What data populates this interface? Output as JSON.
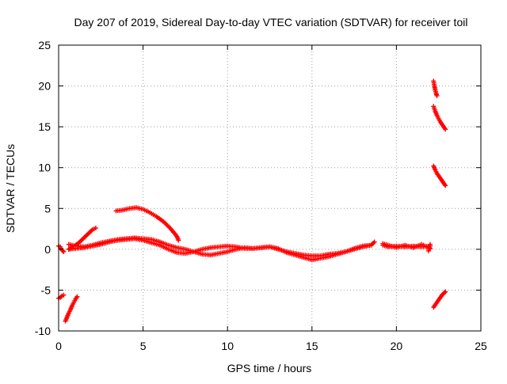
{
  "chart_data": {
    "type": "scatter",
    "title": "Day 207 of 2019, Sidereal Day-to-day VTEC variation (SDTVAR) for receiver toil",
    "xlabel": "GPS time / hours",
    "ylabel": "SDTVAR / TECUs",
    "xlim": [
      0,
      25
    ],
    "ylim": [
      -10,
      25
    ],
    "x_ticks": [
      0,
      5,
      10,
      15,
      20,
      25
    ],
    "y_ticks": [
      -10,
      -5,
      0,
      5,
      10,
      15,
      20,
      25
    ],
    "x_tick_labels": [
      "0",
      "5",
      "10",
      "15",
      "20",
      "25"
    ],
    "y_tick_labels": [
      "-10",
      "-5",
      "0",
      "5",
      "10",
      "15",
      "20",
      "25"
    ],
    "grid": true,
    "legend": "none",
    "marker": "plus",
    "color": "#ff0000",
    "series": [
      {
        "x": [
          0.0,
          0.1,
          0.2,
          0.3
        ],
        "y": [
          -6.0,
          -5.9,
          -5.7,
          -5.6
        ]
      },
      {
        "x": [
          0.0,
          0.1,
          0.2,
          0.3
        ],
        "y": [
          0.4,
          0.3,
          -0.1,
          -0.3
        ]
      },
      {
        "x": [
          0.4,
          0.5,
          0.6,
          0.7,
          0.8,
          0.9,
          1.0,
          1.1
        ],
        "y": [
          -8.8,
          -8.3,
          -7.8,
          -7.4,
          -6.9,
          -6.5,
          -6.1,
          -5.8
        ]
      },
      {
        "x": [
          0.6,
          0.8,
          1.0,
          1.2,
          1.4,
          1.6,
          1.8,
          2.0,
          2.2
        ],
        "y": [
          0.0,
          0.3,
          0.5,
          0.8,
          1.2,
          1.6,
          2.0,
          2.4,
          2.6
        ]
      },
      {
        "x": [
          0.6,
          1.0,
          1.5,
          2.0,
          2.5,
          3.0,
          3.5,
          4.0,
          4.5,
          5.0,
          5.5,
          6.0,
          6.5,
          7.0,
          7.5,
          8.0,
          8.5,
          9.0,
          9.5,
          10.0,
          10.5,
          11.0,
          11.5,
          12.0,
          12.5,
          13.0,
          13.5,
          14.0,
          14.5,
          15.0,
          15.5,
          16.0,
          16.5,
          17.0,
          17.5,
          18.0,
          18.5,
          18.7
        ],
        "y": [
          0.0,
          0.1,
          0.2,
          0.4,
          0.6,
          0.9,
          1.1,
          1.2,
          1.3,
          1.1,
          0.8,
          0.5,
          0.0,
          -0.4,
          -0.5,
          -0.3,
          0.0,
          0.2,
          0.3,
          0.4,
          0.3,
          0.1,
          0.1,
          0.2,
          0.3,
          0.0,
          -0.3,
          -0.5,
          -0.7,
          -0.8,
          -0.8,
          -0.6,
          -0.5,
          -0.3,
          0.0,
          0.3,
          0.5,
          0.9
        ]
      },
      {
        "x": [
          0.6,
          1.0,
          1.5,
          2.0,
          2.5,
          3.0,
          3.5,
          4.0,
          4.5,
          5.0,
          5.5,
          6.0,
          6.5,
          7.0,
          7.5,
          8.0,
          8.5,
          9.0,
          9.5,
          10.0,
          10.5,
          11.0,
          11.5,
          12.0,
          12.5,
          13.0,
          13.5,
          14.0,
          14.5,
          15.0,
          15.5,
          16.0,
          16.5,
          17.0,
          17.5,
          18.0,
          18.5
        ],
        "y": [
          0.6,
          0.4,
          0.3,
          0.5,
          0.8,
          1.0,
          1.2,
          1.3,
          1.4,
          1.3,
          1.2,
          0.9,
          0.5,
          0.2,
          0.0,
          -0.3,
          -0.6,
          -0.7,
          -0.5,
          -0.3,
          0.0,
          0.2,
          0.1,
          0.2,
          0.3,
          0.1,
          -0.4,
          -0.7,
          -1.0,
          -1.3,
          -1.1,
          -0.9,
          -0.6,
          -0.3,
          0.1,
          0.4,
          0.5
        ]
      },
      {
        "x": [
          3.4,
          3.8,
          4.2,
          4.6,
          5.0,
          5.4,
          5.8,
          6.2,
          6.6,
          7.0,
          7.1
        ],
        "y": [
          4.7,
          4.8,
          5.0,
          5.1,
          4.9,
          4.5,
          4.0,
          3.4,
          2.6,
          1.6,
          1.1
        ]
      },
      {
        "x": [
          19.2,
          19.5,
          20.0,
          20.5,
          21.0,
          21.5,
          22.0
        ],
        "y": [
          0.5,
          0.3,
          0.4,
          0.3,
          0.4,
          0.3,
          0.4
        ]
      },
      {
        "x": [
          19.2,
          19.5,
          20.0,
          20.5,
          21.0,
          21.5,
          22.0
        ],
        "y": [
          0.7,
          0.5,
          0.2,
          0.5,
          0.2,
          0.6,
          0.1
        ]
      },
      {
        "x": [
          21.9,
          22.0
        ],
        "y": [
          -0.2,
          0.6
        ]
      },
      {
        "x": [
          22.2,
          22.25,
          22.3,
          22.35,
          22.4
        ],
        "y": [
          20.6,
          20.0,
          19.5,
          19.1,
          18.8
        ]
      },
      {
        "x": [
          22.2,
          22.3,
          22.4,
          22.5,
          22.6,
          22.7,
          22.8,
          22.9
        ],
        "y": [
          17.5,
          16.9,
          16.4,
          16.0,
          15.6,
          15.3,
          15.0,
          14.7
        ]
      },
      {
        "x": [
          22.2,
          22.3,
          22.4,
          22.5,
          22.6,
          22.7,
          22.8,
          22.9
        ],
        "y": [
          10.2,
          9.7,
          9.3,
          9.0,
          8.7,
          8.4,
          8.1,
          7.8
        ]
      },
      {
        "x": [
          22.2,
          22.3,
          22.4,
          22.5,
          22.6,
          22.7,
          22.8,
          22.9
        ],
        "y": [
          -7.1,
          -6.8,
          -6.5,
          -6.2,
          -5.9,
          -5.6,
          -5.4,
          -5.2
        ]
      }
    ]
  }
}
